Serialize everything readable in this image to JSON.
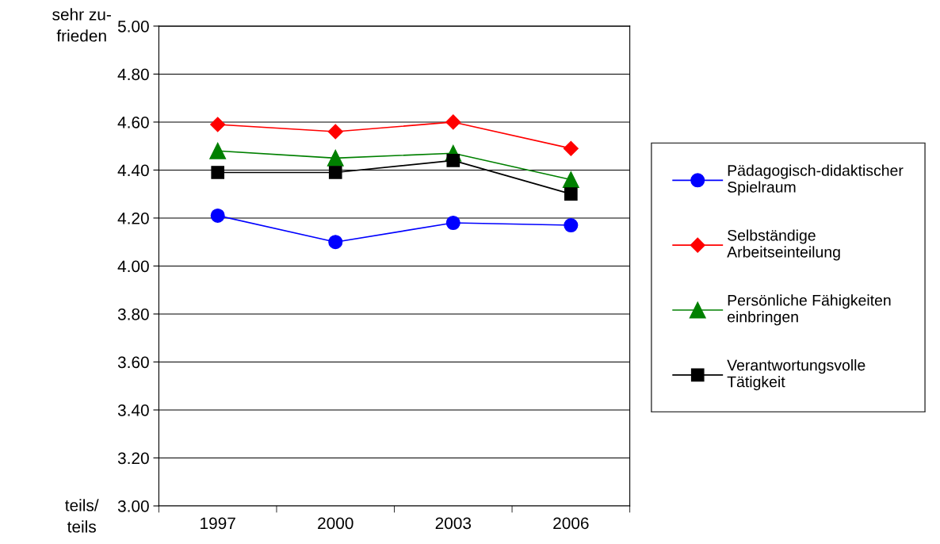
{
  "chart_data": {
    "type": "line",
    "categories": [
      "1997",
      "2000",
      "2003",
      "2006"
    ],
    "series": [
      {
        "name": "Pädagogisch-didaktischer\nSpielraum",
        "color": "#0000ff",
        "marker": "circle",
        "values": [
          4.21,
          4.1,
          4.18,
          4.17
        ]
      },
      {
        "name": "Selbständige\nArbeitseinteilung",
        "color": "#ff0000",
        "marker": "diamond",
        "values": [
          4.59,
          4.56,
          4.6,
          4.49
        ]
      },
      {
        "name": "Persönliche Fähigkeiten\neinbringen",
        "color": "#008000",
        "marker": "triangle",
        "values": [
          4.48,
          4.45,
          4.47,
          4.36
        ]
      },
      {
        "name": "Verantwortungsvolle\nTätigkeit",
        "color": "#000000",
        "marker": "square",
        "values": [
          4.39,
          4.39,
          4.44,
          4.3
        ]
      }
    ],
    "ylim": [
      3.0,
      5.0
    ],
    "yticks": [
      {
        "value": 3.0,
        "label": "3.00"
      },
      {
        "value": 3.2,
        "label": "3.20"
      },
      {
        "value": 3.4,
        "label": "3.40"
      },
      {
        "value": 3.6,
        "label": "3.60"
      },
      {
        "value": 3.8,
        "label": "3.80"
      },
      {
        "value": 4.0,
        "label": "4.00"
      },
      {
        "value": 4.2,
        "label": "4.20"
      },
      {
        "value": 4.4,
        "label": "4.40"
      },
      {
        "value": 4.6,
        "label": "4.60"
      },
      {
        "value": 4.8,
        "label": "4.80"
      },
      {
        "value": 5.0,
        "label": "5.00"
      }
    ],
    "annotations": [
      "sehr zu-\nfrieden",
      "teils/\nteils"
    ],
    "grid": "y",
    "legend": "right",
    "line_style": "solid"
  }
}
